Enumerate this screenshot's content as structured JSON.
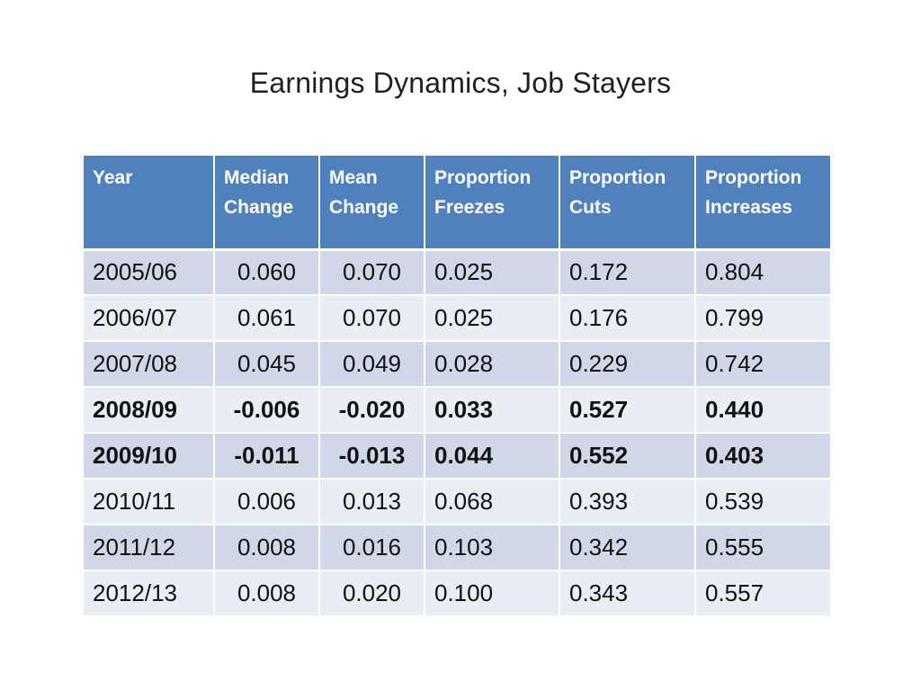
{
  "title": "Earnings Dynamics, Job Stayers",
  "table": {
    "headers": [
      [
        "Year",
        ""
      ],
      [
        "Median",
        "Change"
      ],
      [
        "Mean",
        "Change"
      ],
      [
        "Proportion",
        "Freezes"
      ],
      [
        "Proportion",
        "Cuts"
      ],
      [
        "Proportion",
        "Increases"
      ]
    ],
    "rows": [
      {
        "cells": [
          "2005/06",
          "0.060",
          "0.070",
          "0.025",
          "0.172",
          "0.804"
        ],
        "bold": false
      },
      {
        "cells": [
          "2006/07",
          "0.061",
          "0.070",
          "0.025",
          "0.176",
          "0.799"
        ],
        "bold": false
      },
      {
        "cells": [
          "2007/08",
          "0.045",
          "0.049",
          "0.028",
          "0.229",
          "0.742"
        ],
        "bold": false
      },
      {
        "cells": [
          "2008/09",
          "-0.006",
          "-0.020",
          "0.033",
          "0.527",
          "0.440"
        ],
        "bold": true
      },
      {
        "cells": [
          "2009/10",
          "-0.011",
          "-0.013",
          "0.044",
          "0.552",
          "0.403"
        ],
        "bold": true
      },
      {
        "cells": [
          "2010/11",
          "0.006",
          "0.013",
          "0.068",
          "0.393",
          "0.539"
        ],
        "bold": false
      },
      {
        "cells": [
          "2011/12",
          "0.008",
          "0.016",
          "0.103",
          "0.342",
          "0.555"
        ],
        "bold": false
      },
      {
        "cells": [
          "2012/13",
          "0.008",
          "0.020",
          "0.100",
          "0.343",
          "0.557"
        ],
        "bold": false
      }
    ]
  },
  "colors": {
    "header_bg": "#4f81bd",
    "row_band_dark": "#d0d8e8",
    "row_band_light": "#e9edf4",
    "negative": "#ff0000"
  }
}
